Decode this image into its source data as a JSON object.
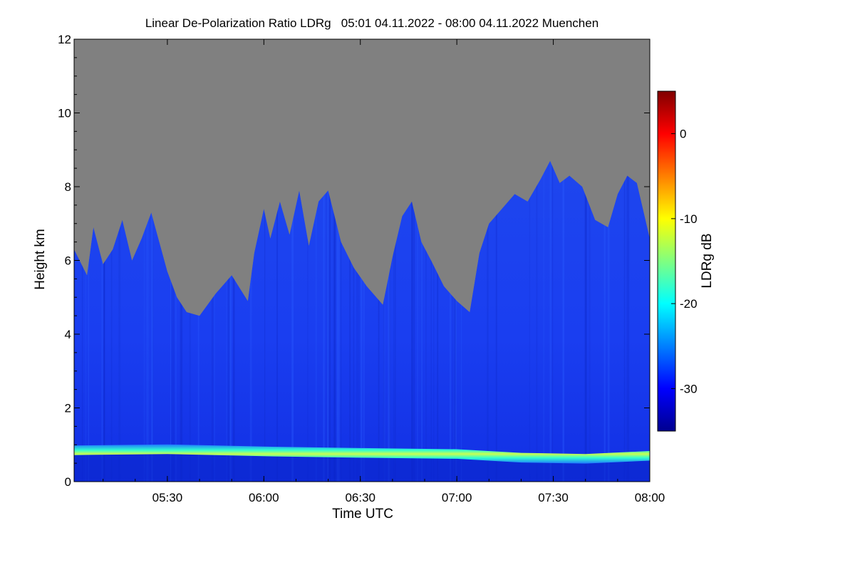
{
  "chart_data": {
    "type": "heatmap",
    "title": "Linear De-Polarization Ratio LDRg   05:01 04.11.2022 - 08:00 04.11.2022 Muenchen",
    "xlabel": "Time UTC",
    "ylabel": "Height km",
    "x_range": [
      "05:01",
      "08:00"
    ],
    "x_ticks": [
      "05:30",
      "06:00",
      "06:30",
      "07:00",
      "07:30",
      "08:00"
    ],
    "x_tick_minutes": [
      330,
      360,
      390,
      420,
      450,
      480
    ],
    "x_start_minute": 301,
    "x_end_minute": 480,
    "ylim": [
      0,
      12
    ],
    "y_ticks": [
      "0",
      "2",
      "4",
      "6",
      "8",
      "10",
      "12"
    ],
    "no_data_color": "#808080",
    "colorbar": {
      "label": "LDRg dB",
      "range": [
        -35,
        5
      ],
      "ticks": [
        "0",
        "-10",
        "-20",
        "-30"
      ],
      "tick_values": [
        0,
        -10,
        -20,
        -30
      ],
      "colormap": "jet"
    },
    "signal_top_km": [
      {
        "t": 301,
        "h": 6.3
      },
      {
        "t": 305,
        "h": 5.6
      },
      {
        "t": 307,
        "h": 6.9
      },
      {
        "t": 310,
        "h": 5.9
      },
      {
        "t": 313,
        "h": 6.3
      },
      {
        "t": 316,
        "h": 7.1
      },
      {
        "t": 319,
        "h": 6.0
      },
      {
        "t": 322,
        "h": 6.6
      },
      {
        "t": 325,
        "h": 7.3
      },
      {
        "t": 330,
        "h": 5.7
      },
      {
        "t": 333,
        "h": 5.0
      },
      {
        "t": 336,
        "h": 4.6
      },
      {
        "t": 340,
        "h": 4.5
      },
      {
        "t": 345,
        "h": 5.1
      },
      {
        "t": 350,
        "h": 5.6
      },
      {
        "t": 355,
        "h": 4.9
      },
      {
        "t": 357,
        "h": 6.2
      },
      {
        "t": 360,
        "h": 7.4
      },
      {
        "t": 362,
        "h": 6.6
      },
      {
        "t": 365,
        "h": 7.6
      },
      {
        "t": 368,
        "h": 6.7
      },
      {
        "t": 371,
        "h": 7.9
      },
      {
        "t": 374,
        "h": 6.4
      },
      {
        "t": 377,
        "h": 7.6
      },
      {
        "t": 380,
        "h": 7.9
      },
      {
        "t": 384,
        "h": 6.5
      },
      {
        "t": 388,
        "h": 5.8
      },
      {
        "t": 392,
        "h": 5.3
      },
      {
        "t": 397,
        "h": 4.8
      },
      {
        "t": 400,
        "h": 6.1
      },
      {
        "t": 403,
        "h": 7.2
      },
      {
        "t": 406,
        "h": 7.6
      },
      {
        "t": 409,
        "h": 6.5
      },
      {
        "t": 412,
        "h": 6.0
      },
      {
        "t": 416,
        "h": 5.3
      },
      {
        "t": 420,
        "h": 4.9
      },
      {
        "t": 424,
        "h": 4.6
      },
      {
        "t": 427,
        "h": 6.2
      },
      {
        "t": 430,
        "h": 7.0
      },
      {
        "t": 434,
        "h": 7.4
      },
      {
        "t": 438,
        "h": 7.8
      },
      {
        "t": 442,
        "h": 7.6
      },
      {
        "t": 446,
        "h": 8.2
      },
      {
        "t": 449,
        "h": 8.7
      },
      {
        "t": 452,
        "h": 8.1
      },
      {
        "t": 455,
        "h": 8.3
      },
      {
        "t": 459,
        "h": 8.0
      },
      {
        "t": 463,
        "h": 7.1
      },
      {
        "t": 467,
        "h": 6.9
      },
      {
        "t": 470,
        "h": 7.8
      },
      {
        "t": 473,
        "h": 8.3
      },
      {
        "t": 476,
        "h": 8.1
      },
      {
        "t": 480,
        "h": 6.6
      }
    ],
    "bright_layer_km": [
      {
        "t": 301,
        "h": 0.85
      },
      {
        "t": 330,
        "h": 0.88
      },
      {
        "t": 360,
        "h": 0.82
      },
      {
        "t": 390,
        "h": 0.78
      },
      {
        "t": 420,
        "h": 0.75
      },
      {
        "t": 440,
        "h": 0.65
      },
      {
        "t": 460,
        "h": 0.62
      },
      {
        "t": 480,
        "h": 0.7
      }
    ]
  }
}
